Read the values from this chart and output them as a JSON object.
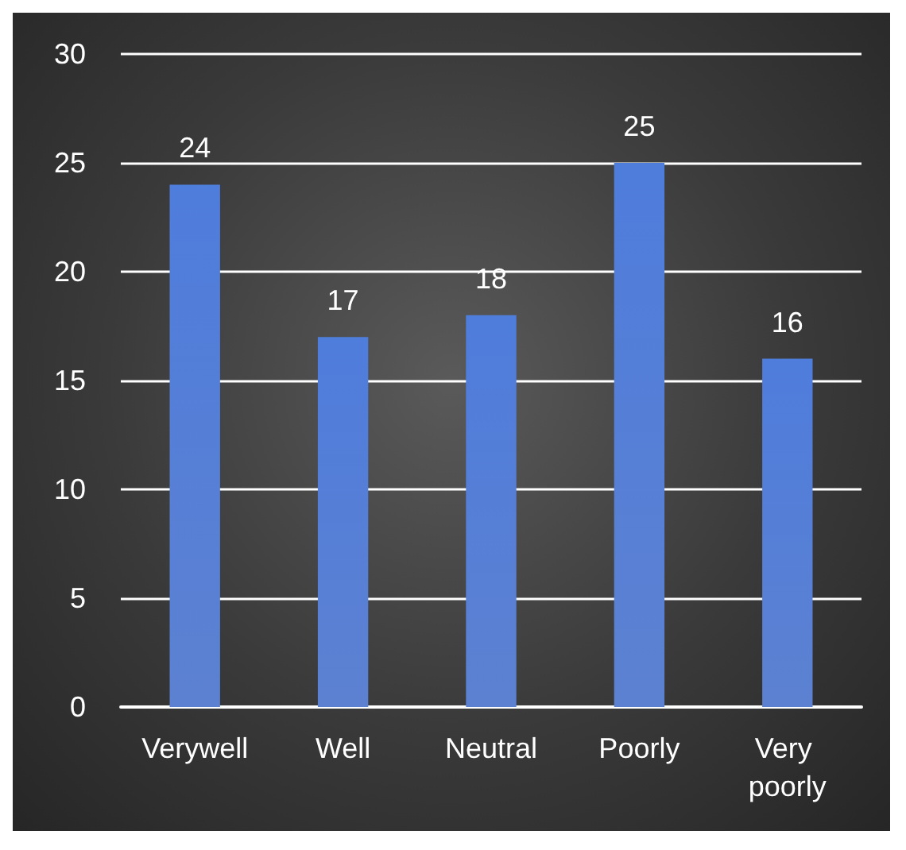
{
  "chart_data": {
    "type": "bar",
    "categories": [
      "Verywell",
      "Well",
      "Neutral",
      "Poorly",
      "Very poorly"
    ],
    "values": [
      24,
      17,
      18,
      25,
      16
    ],
    "color": "#4a74cc",
    "ylim": [
      0,
      30
    ],
    "yticks": [
      0,
      5,
      10,
      15,
      20,
      25,
      30
    ],
    "grid": "y",
    "data_labels": true
  }
}
